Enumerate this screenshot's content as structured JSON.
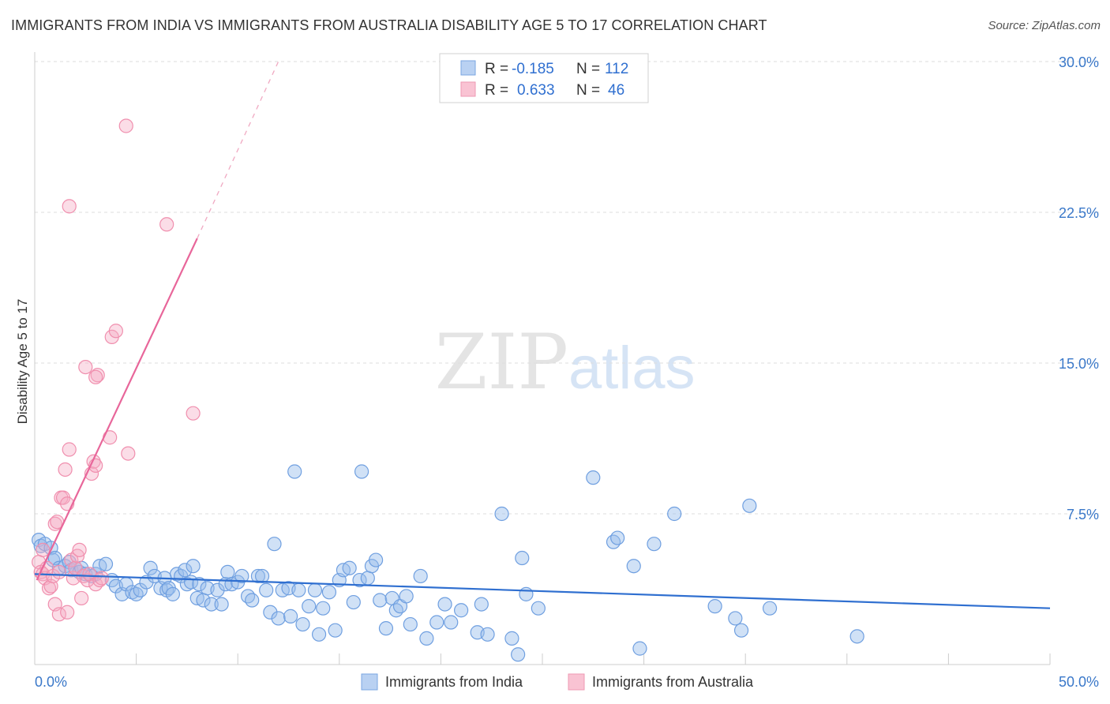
{
  "chart_data": {
    "type": "scatter",
    "title": "IMMIGRANTS FROM INDIA VS IMMIGRANTS FROM AUSTRALIA DISABILITY AGE 5 TO 17 CORRELATION CHART",
    "source": "Source: ZipAtlas.com",
    "xlabel": "",
    "ylabel": "Disability Age 5 to 17",
    "xlim": [
      0,
      50
    ],
    "ylim": [
      0,
      30
    ],
    "x_tick_labels": [
      "0.0%",
      "50.0%"
    ],
    "y_ticks": [
      7.5,
      15.0,
      22.5,
      30.0
    ],
    "y_tick_labels": [
      "7.5%",
      "15.0%",
      "22.5%",
      "30.0%"
    ],
    "grid": true,
    "watermark": "ZIPatlas",
    "legend_stats": [
      {
        "r_label": "R =",
        "r_value": "-0.185",
        "n_label": "N =",
        "n_value": "112"
      },
      {
        "r_label": "R =",
        "r_value": "0.633",
        "n_label": "N =",
        "n_value": "46"
      }
    ],
    "series": [
      {
        "name": "Immigrants from India",
        "color": "#6f9fe0",
        "line_color": "#2f6fd0",
        "trend": {
          "x0": 0,
          "y0": 4.5,
          "x1": 50,
          "y1": 2.8
        },
        "points": [
          [
            0.2,
            6.2
          ],
          [
            0.3,
            5.9
          ],
          [
            0.5,
            6.0
          ],
          [
            0.8,
            5.8
          ],
          [
            0.9,
            5.2
          ],
          [
            1.0,
            5.3
          ],
          [
            1.2,
            4.8
          ],
          [
            1.5,
            4.9
          ],
          [
            1.7,
            5.1
          ],
          [
            1.8,
            4.7
          ],
          [
            2.0,
            4.8
          ],
          [
            2.2,
            4.6
          ],
          [
            2.3,
            4.8
          ],
          [
            2.5,
            4.5
          ],
          [
            2.8,
            4.4
          ],
          [
            3.0,
            4.5
          ],
          [
            3.2,
            4.9
          ],
          [
            3.5,
            5.0
          ],
          [
            3.8,
            4.2
          ],
          [
            4.0,
            3.9
          ],
          [
            4.3,
            3.5
          ],
          [
            4.5,
            4.0
          ],
          [
            4.8,
            3.6
          ],
          [
            5.0,
            3.5
          ],
          [
            5.2,
            3.7
          ],
          [
            5.5,
            4.1
          ],
          [
            5.7,
            4.8
          ],
          [
            5.9,
            4.4
          ],
          [
            6.2,
            3.8
          ],
          [
            6.4,
            4.3
          ],
          [
            6.5,
            3.7
          ],
          [
            6.6,
            3.8
          ],
          [
            6.8,
            3.5
          ],
          [
            7.0,
            4.5
          ],
          [
            7.2,
            4.4
          ],
          [
            7.4,
            4.7
          ],
          [
            7.5,
            4.0
          ],
          [
            7.7,
            4.1
          ],
          [
            7.8,
            4.9
          ],
          [
            8.0,
            3.3
          ],
          [
            8.1,
            4.0
          ],
          [
            8.3,
            3.2
          ],
          [
            8.5,
            3.8
          ],
          [
            8.7,
            3.0
          ],
          [
            9.0,
            3.7
          ],
          [
            9.2,
            3.0
          ],
          [
            9.4,
            4.0
          ],
          [
            9.5,
            4.6
          ],
          [
            9.7,
            4.0
          ],
          [
            10.0,
            4.1
          ],
          [
            10.2,
            4.4
          ],
          [
            10.5,
            3.4
          ],
          [
            10.7,
            3.2
          ],
          [
            11.0,
            4.4
          ],
          [
            11.2,
            4.4
          ],
          [
            11.4,
            3.7
          ],
          [
            11.6,
            2.6
          ],
          [
            11.8,
            6.0
          ],
          [
            12.0,
            2.3
          ],
          [
            12.2,
            3.7
          ],
          [
            12.5,
            3.8
          ],
          [
            12.6,
            2.4
          ],
          [
            12.8,
            9.6
          ],
          [
            13.0,
            3.7
          ],
          [
            13.2,
            2.0
          ],
          [
            13.5,
            2.9
          ],
          [
            13.8,
            3.7
          ],
          [
            14.0,
            1.5
          ],
          [
            14.2,
            2.8
          ],
          [
            14.5,
            3.6
          ],
          [
            14.8,
            1.7
          ],
          [
            15.0,
            4.2
          ],
          [
            15.2,
            4.7
          ],
          [
            15.5,
            4.8
          ],
          [
            15.7,
            3.1
          ],
          [
            16.0,
            4.2
          ],
          [
            16.1,
            9.6
          ],
          [
            16.4,
            4.3
          ],
          [
            16.6,
            4.9
          ],
          [
            16.8,
            5.2
          ],
          [
            17.0,
            3.2
          ],
          [
            17.3,
            1.8
          ],
          [
            17.6,
            3.3
          ],
          [
            17.8,
            2.7
          ],
          [
            18.0,
            2.9
          ],
          [
            18.3,
            3.4
          ],
          [
            18.5,
            2.0
          ],
          [
            19.0,
            4.4
          ],
          [
            19.3,
            1.3
          ],
          [
            19.8,
            2.1
          ],
          [
            20.2,
            3.0
          ],
          [
            20.5,
            2.1
          ],
          [
            21.0,
            2.7
          ],
          [
            21.8,
            1.6
          ],
          [
            22.0,
            3.0
          ],
          [
            22.3,
            1.5
          ],
          [
            23.0,
            7.5
          ],
          [
            23.5,
            1.3
          ],
          [
            23.8,
            0.5
          ],
          [
            24.0,
            5.3
          ],
          [
            24.2,
            3.5
          ],
          [
            24.8,
            2.8
          ],
          [
            27.5,
            9.3
          ],
          [
            28.5,
            6.1
          ],
          [
            28.7,
            6.3
          ],
          [
            29.5,
            4.9
          ],
          [
            29.8,
            0.8
          ],
          [
            30.5,
            6.0
          ],
          [
            31.5,
            7.5
          ],
          [
            33.5,
            2.9
          ],
          [
            34.5,
            2.3
          ],
          [
            34.8,
            1.7
          ],
          [
            35.2,
            7.9
          ],
          [
            36.2,
            2.8
          ],
          [
            40.5,
            1.4
          ]
        ]
      },
      {
        "name": "Immigrants from Australia",
        "color": "#f08fae",
        "line_color": "#e8669a",
        "trend": {
          "x0": 0.1,
          "y0": 4.2,
          "x1": 8.0,
          "y1": 21.2
        },
        "trend_dashed": {
          "x0": 8.0,
          "y0": 21.2,
          "x1": 12.0,
          "y1": 30.0
        },
        "points": [
          [
            0.2,
            5.1
          ],
          [
            0.3,
            4.6
          ],
          [
            0.4,
            4.5
          ],
          [
            0.5,
            4.3
          ],
          [
            0.6,
            4.8
          ],
          [
            0.7,
            3.8
          ],
          [
            0.8,
            3.9
          ],
          [
            0.9,
            4.4
          ],
          [
            1.0,
            7.0
          ],
          [
            1.1,
            7.1
          ],
          [
            1.0,
            3.0
          ],
          [
            1.2,
            4.6
          ],
          [
            1.2,
            2.5
          ],
          [
            1.3,
            8.3
          ],
          [
            1.4,
            8.3
          ],
          [
            1.5,
            9.7
          ],
          [
            1.6,
            8.0
          ],
          [
            1.6,
            2.6
          ],
          [
            1.7,
            10.7
          ],
          [
            1.7,
            22.8
          ],
          [
            1.8,
            5.2
          ],
          [
            1.9,
            4.3
          ],
          [
            2.0,
            4.8
          ],
          [
            2.1,
            5.4
          ],
          [
            2.2,
            5.7
          ],
          [
            2.3,
            3.3
          ],
          [
            2.4,
            4.4
          ],
          [
            2.5,
            14.8
          ],
          [
            2.6,
            4.2
          ],
          [
            2.7,
            4.5
          ],
          [
            2.8,
            9.5
          ],
          [
            2.9,
            10.1
          ],
          [
            3.0,
            9.9
          ],
          [
            3.0,
            4.0
          ],
          [
            3.1,
            14.4
          ],
          [
            3.0,
            14.3
          ],
          [
            3.2,
            4.2
          ],
          [
            3.3,
            4.3
          ],
          [
            3.7,
            11.3
          ],
          [
            3.8,
            16.3
          ],
          [
            4.0,
            16.6
          ],
          [
            4.5,
            26.8
          ],
          [
            4.6,
            10.5
          ],
          [
            6.5,
            21.9
          ],
          [
            7.8,
            12.5
          ],
          [
            0.4,
            5.7
          ]
        ]
      }
    ]
  },
  "legend": {
    "items": [
      {
        "label": "Immigrants from India"
      },
      {
        "label": "Immigrants from Australia"
      }
    ]
  }
}
